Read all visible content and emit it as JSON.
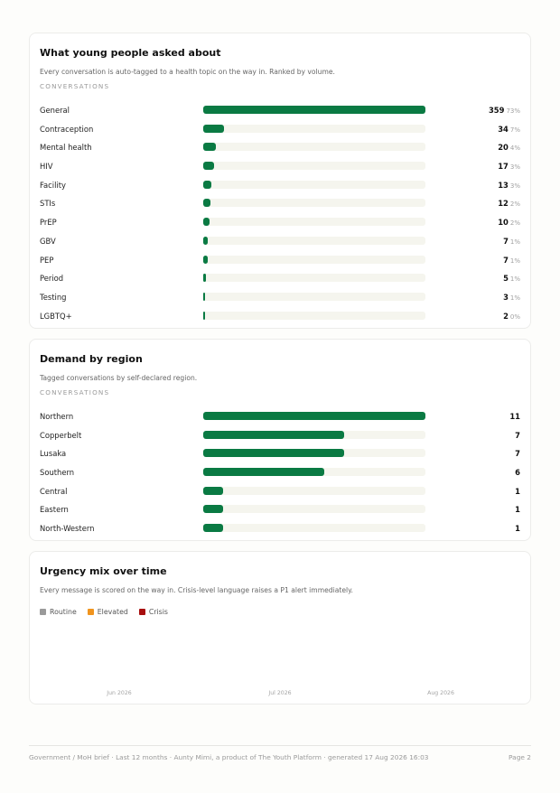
{
  "topics": {
    "title": "What young people asked about",
    "subtitle": "Every conversation is auto-tagged to a health topic on the way in. Ranked by volume.",
    "caption": "CONVERSATIONS",
    "rows": [
      {
        "label": "General",
        "count": "359",
        "pct": "73%",
        "fraction": 1.0
      },
      {
        "label": "Contraception",
        "count": "34",
        "pct": "7%",
        "fraction": 0.095
      },
      {
        "label": "Mental health",
        "count": "20",
        "pct": "4%",
        "fraction": 0.056
      },
      {
        "label": "HIV",
        "count": "17",
        "pct": "3%",
        "fraction": 0.047
      },
      {
        "label": "Facility",
        "count": "13",
        "pct": "3%",
        "fraction": 0.036
      },
      {
        "label": "STIs",
        "count": "12",
        "pct": "2%",
        "fraction": 0.033
      },
      {
        "label": "PrEP",
        "count": "10",
        "pct": "2%",
        "fraction": 0.028
      },
      {
        "label": "GBV",
        "count": "7",
        "pct": "1%",
        "fraction": 0.019
      },
      {
        "label": "PEP",
        "count": "7",
        "pct": "1%",
        "fraction": 0.019
      },
      {
        "label": "Period",
        "count": "5",
        "pct": "1%",
        "fraction": 0.014
      },
      {
        "label": "Testing",
        "count": "3",
        "pct": "1%",
        "fraction": 0.008
      },
      {
        "label": "LGBTQ+",
        "count": "2",
        "pct": "0%",
        "fraction": 0.006
      }
    ]
  },
  "region": {
    "title": "Demand by region",
    "subtitle": "Tagged conversations by self-declared region.",
    "caption": "CONVERSATIONS",
    "rows": [
      {
        "label": "Northern",
        "count": "11",
        "fraction": 1.0
      },
      {
        "label": "Copperbelt",
        "count": "7",
        "fraction": 0.636
      },
      {
        "label": "Lusaka",
        "count": "7",
        "fraction": 0.636
      },
      {
        "label": "Southern",
        "count": "6",
        "fraction": 0.545
      },
      {
        "label": "Central",
        "count": "1",
        "fraction": 0.091
      },
      {
        "label": "Eastern",
        "count": "1",
        "fraction": 0.091
      },
      {
        "label": "North-Western",
        "count": "1",
        "fraction": 0.091
      }
    ]
  },
  "urgency": {
    "title": "Urgency mix over time",
    "subtitle": "Every message is scored on the way in. Crisis-level language raises a P1 alert immediately.",
    "legend": [
      {
        "label": "Routine",
        "color": "#9a9a9a"
      },
      {
        "label": "Elevated",
        "color": "#f0941e"
      },
      {
        "label": "Crisis",
        "color": "#a80f0f"
      }
    ],
    "months": [
      "Jun 2026",
      "Jul 2026",
      "Aug 2026"
    ]
  },
  "colors": {
    "bar": "#0a7a43",
    "track": "#f5f5ee"
  },
  "footer": {
    "left": "Government / MoH brief · Last 12 months · Aunty Mimi, a product of The Youth Platform · generated 17 Aug 2026 16:03",
    "right": "Page 2"
  }
}
